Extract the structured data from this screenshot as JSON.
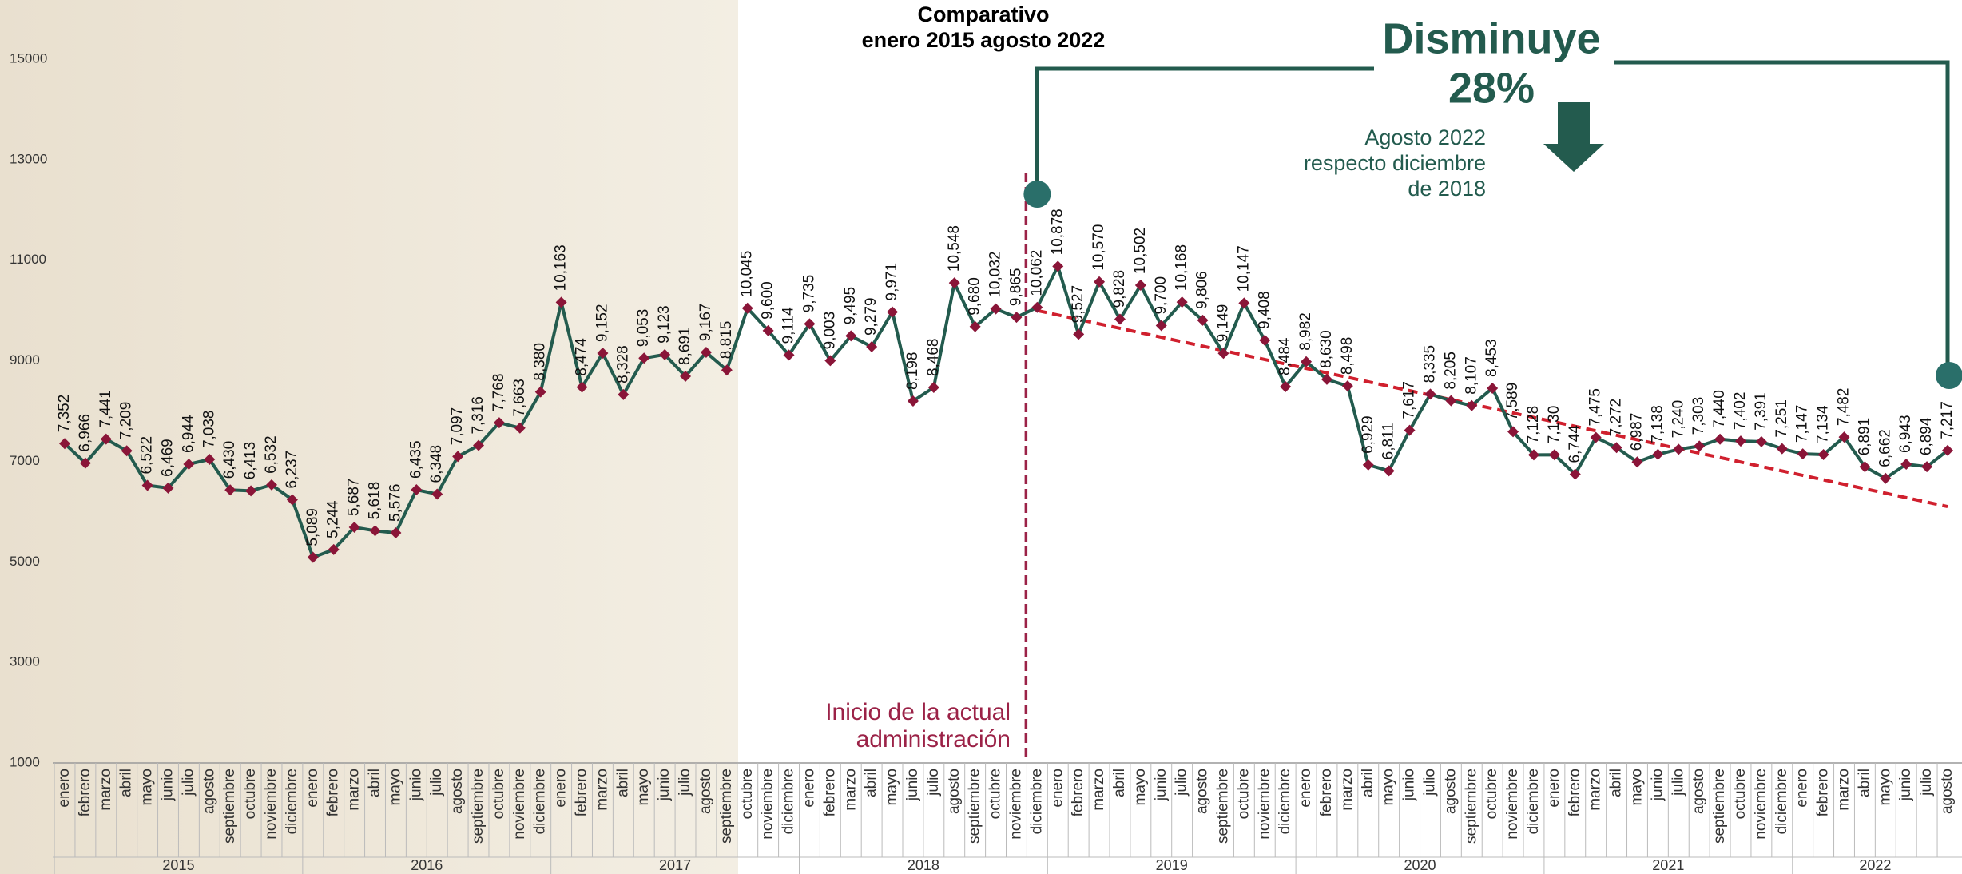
{
  "chart_data": {
    "type": "line",
    "title": "Comparativo",
    "subtitle": "enero 2015 agosto 2022",
    "headline": "Disminuye",
    "headline_value": "28%",
    "headline_note": [
      "Agosto 2022",
      "respecto diciembre",
      "de 2018"
    ],
    "annotation": [
      "Inicio de la actual",
      "administración"
    ],
    "categories": [
      "enero",
      "febrero",
      "marzo",
      "abril",
      "mayo",
      "junio",
      "julio",
      "agosto",
      "septiembre",
      "octubre",
      "noviembre",
      "diciembre",
      "enero",
      "febrero",
      "marzo",
      "abril",
      "mayo",
      "junio",
      "julio",
      "agosto",
      "septiembre",
      "octubre",
      "noviembre",
      "diciembre",
      "enero",
      "febrero",
      "marzo",
      "abril",
      "mayo",
      "junio",
      "julio",
      "agosto",
      "septiembre",
      "octubre",
      "noviembre",
      "diciembre",
      "enero",
      "febrero",
      "marzo",
      "abril",
      "mayo",
      "junio",
      "julio",
      "agosto",
      "septiembre",
      "octubre",
      "noviembre",
      "diciembre",
      "enero",
      "febrero",
      "marzo",
      "abril",
      "mayo",
      "junio",
      "julio",
      "agosto",
      "septiembre",
      "octubre",
      "noviembre",
      "diciembre",
      "enero",
      "febrero",
      "marzo",
      "abril",
      "mayo",
      "junio",
      "julio",
      "agosto",
      "septiembre",
      "octubre",
      "noviembre",
      "diciembre",
      "enero",
      "febrero",
      "marzo",
      "abril",
      "mayo",
      "junio",
      "julio",
      "agosto",
      "septiembre",
      "octubre",
      "noviembre",
      "diciembre",
      "enero",
      "febrero",
      "marzo",
      "abril",
      "mayo",
      "junio",
      "julio",
      "agosto"
    ],
    "years": [
      "2015",
      "2016",
      "2017",
      "2018",
      "2019",
      "2020",
      "2021",
      "2022"
    ],
    "values": [
      7352,
      6966,
      7441,
      7209,
      6522,
      6469,
      6944,
      7038,
      6430,
      6413,
      6532,
      6237,
      5089,
      5244,
      5687,
      5618,
      5576,
      6435,
      6348,
      7097,
      7316,
      7768,
      7663,
      8380,
      10163,
      8474,
      9152,
      8328,
      9053,
      9123,
      8691,
      9167,
      8815,
      10045,
      9600,
      9114,
      9735,
      9003,
      9495,
      9279,
      9971,
      8198,
      8468,
      10548,
      9680,
      10032,
      9865,
      10062,
      10878,
      9527,
      10570,
      9828,
      10502,
      9700,
      10168,
      9806,
      9149,
      10147,
      9408,
      8484,
      8982,
      8630,
      8498,
      6929,
      6811,
      7617,
      8335,
      8205,
      8107,
      8453,
      7589,
      7128,
      7130,
      6744,
      7475,
      7272,
      6987,
      7138,
      7240,
      7303,
      7440,
      7402,
      7391,
      7251,
      7147,
      7134,
      7482,
      6891,
      6662,
      6943,
      6894,
      7217
    ],
    "value_labels": [
      "7,352",
      "6,966",
      "7,441",
      "7,209",
      "6,522",
      "6,469",
      "6,944",
      "7,038",
      "6,430",
      "6,413",
      "6,532",
      "6,237",
      "5,089",
      "5,244",
      "5,687",
      "5,618",
      "5,576",
      "6,435",
      "6,348",
      "7,097",
      "7,316",
      "7,768",
      "7,663",
      "8,380",
      "10,163",
      "8,474",
      "9,152",
      "8,328",
      "9,053",
      "9,123",
      "8,691",
      "9,167",
      "8,815",
      "10,045",
      "9,600",
      "9,114",
      "9,735",
      "9,003",
      "9,495",
      "9,279",
      "9,971",
      "8,198",
      "8,468",
      "10,548",
      "9,680",
      "10,032",
      "9,865",
      "10,062",
      "10,878",
      "9,527",
      "10,570",
      "9,828",
      "10,502",
      "9,700",
      "10,168",
      "9,806",
      "9,149",
      "10,147",
      "9,408",
      "8,484",
      "8,982",
      "8,630",
      "8,498",
      "6,929",
      "6,811",
      "7,617",
      "8,335",
      "8,205",
      "8,107",
      "8,453",
      "7,589",
      "7,128",
      "7,130",
      "6,744",
      "7,475",
      "7,272",
      "6,987",
      "7,138",
      "7,240",
      "7,303",
      "7,440",
      "7,402",
      "7,391",
      "7,251",
      "7,147",
      "7,134",
      "7,482",
      "6,891",
      "6,662",
      "6,943",
      "6,894",
      "7,217"
    ],
    "color": "#235b4e",
    "marker_color": "#8a1538",
    "trend_color": "#d0202e",
    "accent_color": "#9b2247",
    "trendline": [
      10000,
      6100
    ],
    "ylim": [
      1000,
      15000
    ],
    "yticks": [
      1000,
      3000,
      5000,
      7000,
      9000,
      11000,
      13000,
      15000
    ]
  }
}
